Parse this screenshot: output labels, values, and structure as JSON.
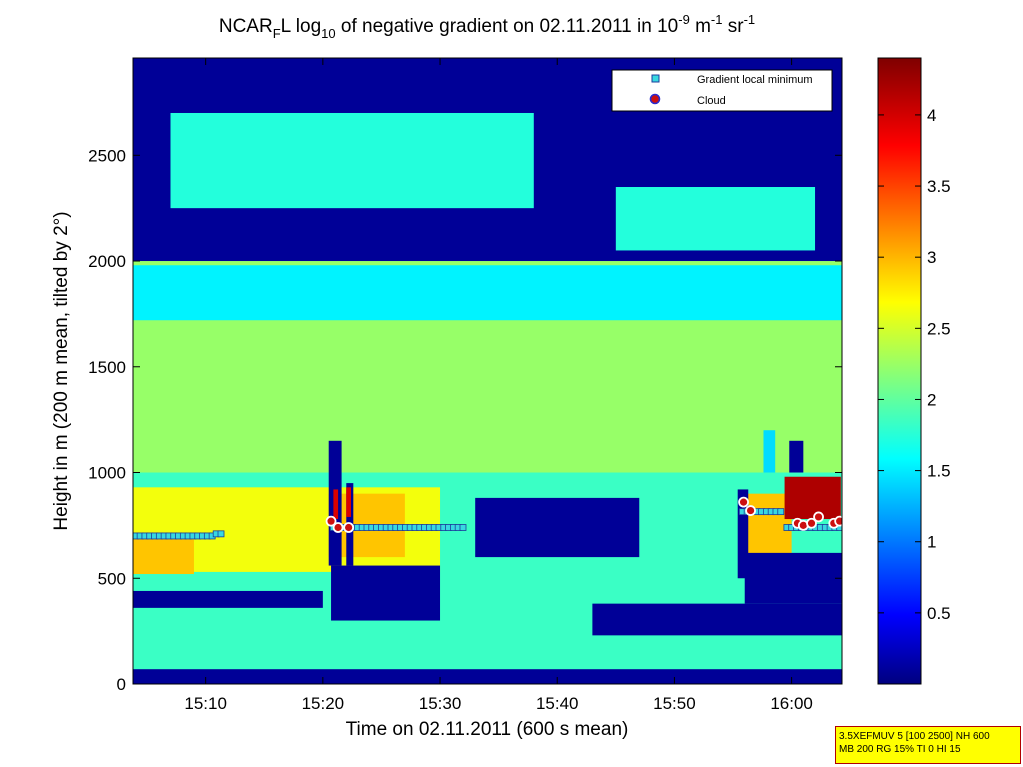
{
  "chart_data": {
    "type": "heatmap",
    "title": {
      "p1": "NCAR",
      "p1_sub": "F",
      "p2": "L log",
      "p2_sub": "10",
      "p3": " of negative gradient on 02.11.2011 in 10",
      "p3_sup": "-9",
      "p4": " m",
      "p4_sup": "-1",
      "p5": " sr",
      "p5_sup": "-1"
    },
    "xlabel": "Time on 02.11.2011 (600 s mean)",
    "ylabel": "Height in m (200 m mean, tilted by 2°)",
    "x_unit": "minutes after 15:00",
    "xlim": [
      3.8,
      64.3
    ],
    "ylim": [
      0,
      2960
    ],
    "x_ticks": [
      {
        "value": 10,
        "label": "15:10"
      },
      {
        "value": 20,
        "label": "15:20"
      },
      {
        "value": 30,
        "label": "15:30"
      },
      {
        "value": 40,
        "label": "15:40"
      },
      {
        "value": 50,
        "label": "15:50"
      },
      {
        "value": 60,
        "label": "16:00"
      }
    ],
    "y_ticks": [
      {
        "value": 0,
        "label": "0"
      },
      {
        "value": 500,
        "label": "500"
      },
      {
        "value": 1000,
        "label": "1000"
      },
      {
        "value": 1500,
        "label": "1500"
      },
      {
        "value": 2000,
        "label": "2000"
      },
      {
        "value": 2500,
        "label": "2500"
      }
    ],
    "colorbar": {
      "min": 0,
      "max": 4.4,
      "colormap": "jet",
      "ticks": [
        {
          "value": 0.5,
          "label": "0.5"
        },
        {
          "value": 1,
          "label": "1"
        },
        {
          "value": 1.5,
          "label": "1.5"
        },
        {
          "value": 2,
          "label": "2"
        },
        {
          "value": 2.5,
          "label": "2.5"
        },
        {
          "value": 3,
          "label": "3"
        },
        {
          "value": 3.5,
          "label": "3.5"
        },
        {
          "value": 4,
          "label": "4"
        }
      ]
    },
    "legend": {
      "placement": "top-right",
      "entries": [
        {
          "name": "Gradient local minimum",
          "marker": "square",
          "color": "#38d8e0"
        },
        {
          "name": "Cloud",
          "marker": "circle",
          "color": "#cc1010"
        }
      ]
    },
    "gradient_local_minimum_segments": [
      {
        "x0": 4.0,
        "x1": 10.9,
        "y": 700
      },
      {
        "x0": 10.9,
        "x1": 11.6,
        "y": 710
      },
      {
        "x0": 20.9,
        "x1": 32.2,
        "y": 740
      },
      {
        "x0": 55.8,
        "x1": 59.2,
        "y": 815
      },
      {
        "x0": 59.6,
        "x1": 64.2,
        "y": 740
      }
    ],
    "cloud_points": [
      {
        "x": 20.7,
        "y": 770
      },
      {
        "x": 21.3,
        "y": 740
      },
      {
        "x": 22.2,
        "y": 740
      },
      {
        "x": 55.9,
        "y": 860
      },
      {
        "x": 56.5,
        "y": 820
      },
      {
        "x": 60.5,
        "y": 760
      },
      {
        "x": 61.0,
        "y": 750
      },
      {
        "x": 61.7,
        "y": 760
      },
      {
        "x": 62.3,
        "y": 790
      },
      {
        "x": 63.6,
        "y": 760
      },
      {
        "x": 64.1,
        "y": 770
      }
    ],
    "field_regions": [
      {
        "x0": 3.8,
        "x1": 64.3,
        "y0": 0,
        "y1": 2960,
        "value": 1.9
      },
      {
        "x0": 3.8,
        "x1": 64.3,
        "y0": 1000,
        "y1": 2000,
        "value": 2.3
      },
      {
        "x0": 3.8,
        "x1": 30,
        "y0": 530,
        "y1": 930,
        "value": 2.7
      },
      {
        "x0": 3.8,
        "x1": 9,
        "y0": 520,
        "y1": 700,
        "value": 3.0
      },
      {
        "x0": 20.5,
        "x1": 27,
        "y0": 600,
        "y1": 900,
        "value": 3.0
      },
      {
        "x0": 55.5,
        "x1": 60,
        "y0": 600,
        "y1": 900,
        "value": 3.0
      },
      {
        "x0": 3.8,
        "x1": 20,
        "y0": 360,
        "y1": 440,
        "value": 0.1
      },
      {
        "x0": 20.7,
        "x1": 30,
        "y0": 300,
        "y1": 560,
        "value": 0.1
      },
      {
        "x0": 33,
        "x1": 47,
        "y0": 600,
        "y1": 880,
        "value": 0.1
      },
      {
        "x0": 43,
        "x1": 64.3,
        "y0": 230,
        "y1": 380,
        "value": 0.1
      },
      {
        "x0": 56,
        "x1": 64.3,
        "y0": 380,
        "y1": 620,
        "value": 0.1
      },
      {
        "x0": 3.8,
        "x1": 64.3,
        "y0": 0,
        "y1": 70,
        "value": 0.1
      },
      {
        "x0": 3.8,
        "x1": 64.3,
        "y0": 2000,
        "y1": 2960,
        "value": 0.1
      },
      {
        "x0": 7,
        "x1": 38,
        "y0": 2250,
        "y1": 2700,
        "value": 1.8
      },
      {
        "x0": 45,
        "x1": 62,
        "y0": 2050,
        "y1": 2350,
        "value": 1.8
      },
      {
        "x0": 3.8,
        "x1": 64.3,
        "y0": 1720,
        "y1": 1980,
        "value": 1.6
      },
      {
        "x0": 20.5,
        "x1": 21.6,
        "y0": 560,
        "y1": 1150,
        "value": 0.1
      },
      {
        "x0": 22.0,
        "x1": 22.6,
        "y0": 560,
        "y1": 950,
        "value": 0.1
      },
      {
        "x0": 20.9,
        "x1": 21.3,
        "y0": 780,
        "y1": 920,
        "value": 4.0
      },
      {
        "x0": 22.0,
        "x1": 22.4,
        "y0": 790,
        "y1": 930,
        "value": 4.0
      },
      {
        "x0": 55.4,
        "x1": 56.3,
        "y0": 500,
        "y1": 920,
        "value": 0.1
      },
      {
        "x0": 57.6,
        "x1": 58.6,
        "y0": 1000,
        "y1": 1200,
        "value": 1.5
      },
      {
        "x0": 59.4,
        "x1": 64.2,
        "y0": 780,
        "y1": 980,
        "value": 4.2
      },
      {
        "x0": 59.8,
        "x1": 61.0,
        "y0": 1000,
        "y1": 1150,
        "value": 0.1
      }
    ]
  },
  "info_box": {
    "line1": "3.5XEFMUV 5 [100 2500] NH 600",
    "line2": "MB 200 RG 15% TI 0 HI 15"
  }
}
